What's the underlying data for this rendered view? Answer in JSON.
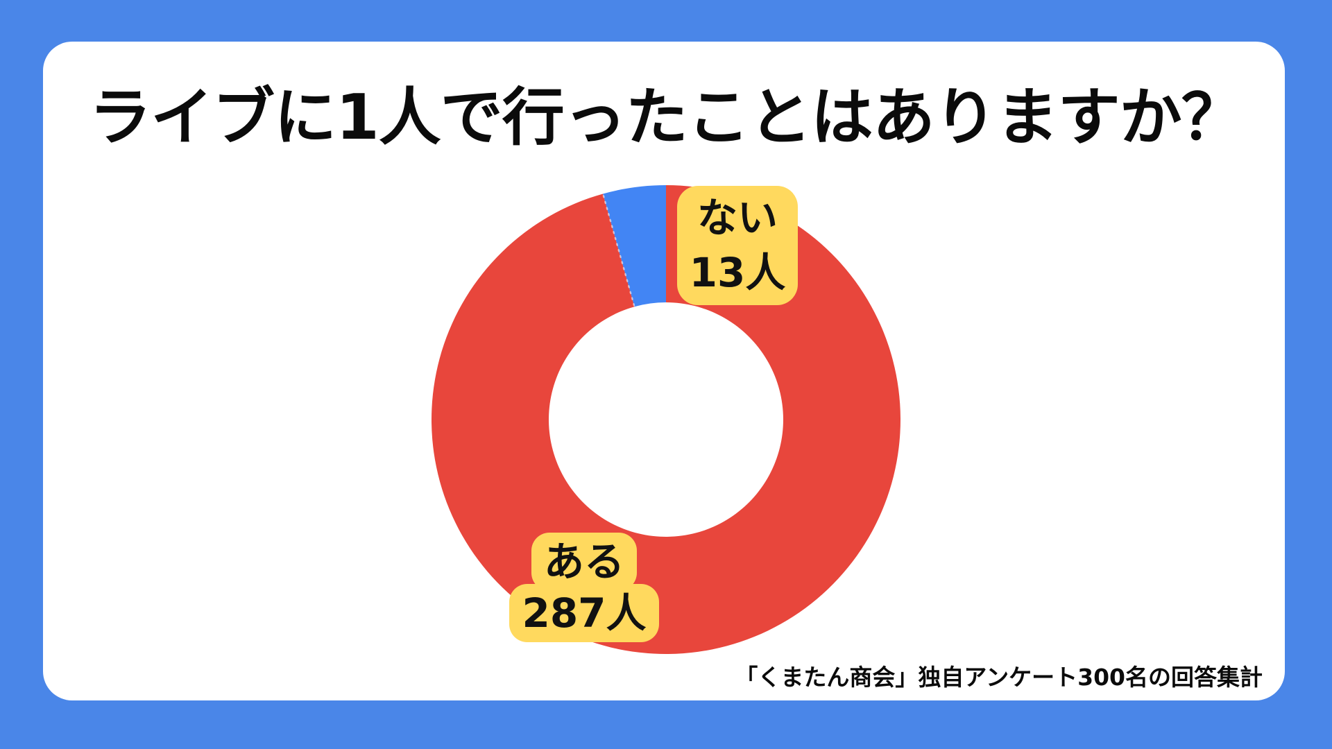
{
  "title": "ライブに1人で行ったことはありますか？",
  "colors": {
    "frame_blue": "#4A86E8",
    "card_white": "#FFFFFF",
    "segment_red": "#E8463C",
    "segment_blue": "#4285F4",
    "label_yellow": "#FFD95E",
    "text_black": "#0b0b0b"
  },
  "chart_data": {
    "type": "pie",
    "subtype": "donut",
    "title": "ライブに1人で行ったことはありますか？",
    "categories": [
      "ある",
      "ない"
    ],
    "values": [
      287,
      13
    ],
    "total": 300,
    "unit": "人",
    "colors": [
      "#E8463C",
      "#4285F4"
    ],
    "start_angle_deg": 0,
    "direction": "clockwise",
    "inner_radius_ratio": 0.5,
    "legend_position": "none",
    "labels": [
      {
        "category": "ある",
        "lines": [
          "ある",
          "287人"
        ]
      },
      {
        "category": "ない",
        "lines": [
          "ない",
          "13人"
        ]
      }
    ]
  },
  "footer": {
    "source": "「くまたん商会」独自アンケート300名の回答集計"
  }
}
